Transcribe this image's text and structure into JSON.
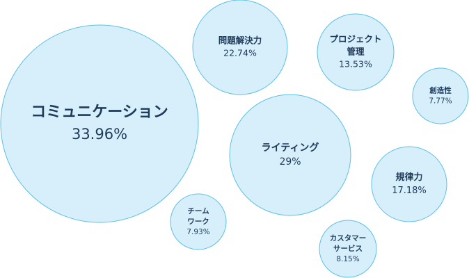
{
  "chart_data": {
    "type": "bubble",
    "title": "",
    "bubbles": [
      {
        "label": "コミュニケーション",
        "value": 33.96,
        "value_label": "33.96%"
      },
      {
        "label": "ライティング",
        "value": 29,
        "value_label": "29%"
      },
      {
        "label": "問題解決力",
        "value": 22.74,
        "value_label": "22.74%"
      },
      {
        "label": "規律力",
        "value": 17.18,
        "value_label": "17.18%"
      },
      {
        "label": "プロジェクト管理",
        "value": 13.53,
        "value_label": "13.53%"
      },
      {
        "label": "カスタマーサービス",
        "value": 8.15,
        "value_label": "8.15%"
      },
      {
        "label": "チームワーク",
        "value": 7.93,
        "value_label": "7.93%"
      },
      {
        "label": "創造性",
        "value": 7.77,
        "value_label": "7.77%"
      }
    ],
    "colors": {
      "fill": "#d6effa",
      "stroke": "#5cc0e6",
      "text": "#1f3a5a"
    }
  }
}
